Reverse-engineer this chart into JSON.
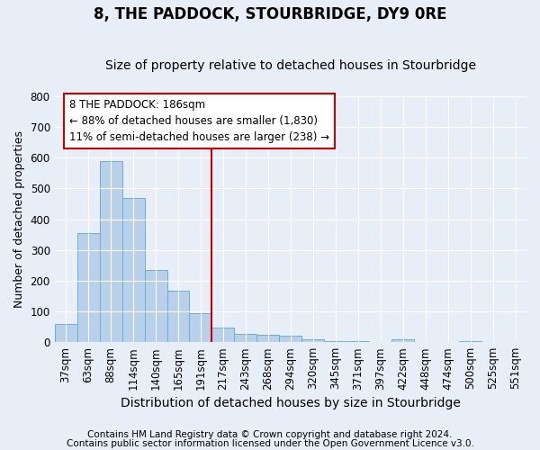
{
  "title": "8, THE PADDOCK, STOURBRIDGE, DY9 0RE",
  "subtitle": "Size of property relative to detached houses in Stourbridge",
  "xlabel": "Distribution of detached houses by size in Stourbridge",
  "ylabel": "Number of detached properties",
  "footnote1": "Contains HM Land Registry data © Crown copyright and database right 2024.",
  "footnote2": "Contains public sector information licensed under the Open Government Licence v3.0.",
  "categories": [
    "37sqm",
    "63sqm",
    "88sqm",
    "114sqm",
    "140sqm",
    "165sqm",
    "191sqm",
    "217sqm",
    "243sqm",
    "268sqm",
    "294sqm",
    "320sqm",
    "345sqm",
    "371sqm",
    "397sqm",
    "422sqm",
    "448sqm",
    "474sqm",
    "500sqm",
    "525sqm",
    "551sqm"
  ],
  "values": [
    58,
    356,
    588,
    470,
    235,
    167,
    95,
    47,
    27,
    25,
    20,
    10,
    2,
    2,
    1,
    8,
    1,
    1,
    2,
    1,
    1
  ],
  "bar_color": "#b8d0ea",
  "bar_edge_color": "#6aaed6",
  "bar_linewidth": 0.7,
  "vline_x_index": 6,
  "vline_color": "#cc0000",
  "annotation_text1": "8 THE PADDOCK: 186sqm",
  "annotation_text2": "← 88% of detached houses are smaller (1,830)",
  "annotation_text3": "11% of semi-detached houses are larger (238) →",
  "annotation_box_facecolor": "#ffffff",
  "annotation_box_edgecolor": "#cc0000",
  "background_color": "#e8eef8",
  "ylim": [
    0,
    800
  ],
  "yticks": [
    0,
    100,
    200,
    300,
    400,
    500,
    600,
    700,
    800
  ],
  "grid_color": "#ffffff",
  "title_fontsize": 12,
  "subtitle_fontsize": 10,
  "ylabel_fontsize": 9,
  "xlabel_fontsize": 10,
  "tick_fontsize": 8.5,
  "annot_fontsize": 8.5,
  "footnote_fontsize": 7.5
}
